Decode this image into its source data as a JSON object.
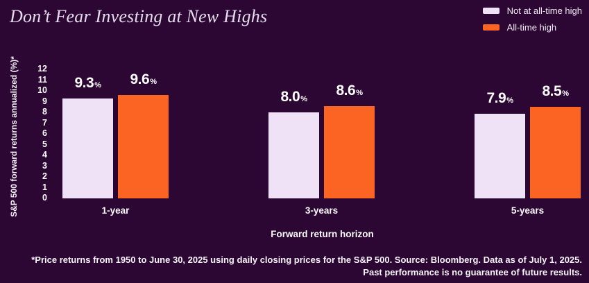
{
  "header": {
    "title": "Don’t Fear Investing at New Highs"
  },
  "legend": {
    "items": [
      {
        "label": "Not at all-time high",
        "color": "#efe1f6"
      },
      {
        "label": "All-time high",
        "color": "#fb6422"
      }
    ]
  },
  "chart_data": {
    "type": "bar",
    "title": "Don’t Fear Investing at New Highs",
    "categories": [
      "1-year",
      "3-years",
      "5-years"
    ],
    "series": [
      {
        "name": "Not at all-time high",
        "color": "#efe1f6",
        "values": [
          9.3,
          8.0,
          7.9
        ]
      },
      {
        "name": "All-time high",
        "color": "#fb6422",
        "values": [
          9.6,
          8.6,
          8.5
        ]
      }
    ],
    "value_suffix": "%",
    "value_decimals": 1,
    "xlabel": "Forward return horizon",
    "ylabel": "S&P 500 forward returns annualized (%)*",
    "ylim": [
      0,
      12
    ],
    "yticks": [
      0,
      1,
      2,
      3,
      4,
      5,
      6,
      7,
      8,
      9,
      10,
      11,
      12
    ],
    "grid": false,
    "legend_position": "top-right"
  },
  "footnote": {
    "line1": "*Price returns from 1950 to June 30, 2025 using daily closing prices for the S&P 500. Source: Bloomberg. Data as of July 1, 2025.",
    "line2": "Past performance is no guarantee of future results."
  },
  "colors": {
    "background": "#2d0733",
    "title_text": "#e4dbec",
    "label_text": "#ffffff",
    "bar_not_at_all_time_high": "#efe1f6",
    "bar_all_time_high": "#fb6422"
  }
}
